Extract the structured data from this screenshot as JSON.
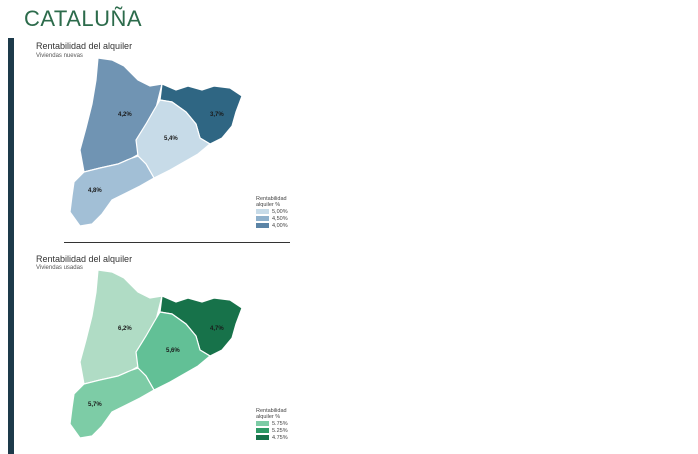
{
  "page": {
    "title": "CATALUÑA"
  },
  "maps": [
    {
      "title": "Rentabilidad del alquiler",
      "subtitle": "Viviendas nuevas",
      "regions": [
        {
          "name": "lleida",
          "label": "4,2%",
          "color": "#7094b3"
        },
        {
          "name": "girona",
          "label": "3,7%",
          "color": "#2f6683"
        },
        {
          "name": "barcelona",
          "label": "5,4%",
          "color": "#c7dbe8"
        },
        {
          "name": "tarragona",
          "label": "4,8%",
          "color": "#a2bfd6"
        }
      ],
      "legend": {
        "title": "Rentabilidad alquiler %",
        "items": [
          {
            "label": "5,00%",
            "color": "#c7dbe8"
          },
          {
            "label": "4,50%",
            "color": "#8fb1cc"
          },
          {
            "label": "4,00%",
            "color": "#5b84a6"
          }
        ]
      }
    },
    {
      "title": "Rentabilidad del alquiler",
      "subtitle": "Viviendas usadas",
      "regions": [
        {
          "name": "lleida",
          "label": "6,2%",
          "color": "#b0dcc5"
        },
        {
          "name": "girona",
          "label": "4,7%",
          "color": "#17724a"
        },
        {
          "name": "barcelona",
          "label": "5,6%",
          "color": "#62c096"
        },
        {
          "name": "tarragona",
          "label": "5,7%",
          "color": "#7dcca6"
        }
      ],
      "legend": {
        "title": "Rentabilidad alquiler %",
        "items": [
          {
            "label": "5.75%",
            "color": "#7dcca6"
          },
          {
            "label": "5.25%",
            "color": "#2e9a66"
          },
          {
            "label": "4.75%",
            "color": "#17724a"
          }
        ]
      }
    }
  ]
}
